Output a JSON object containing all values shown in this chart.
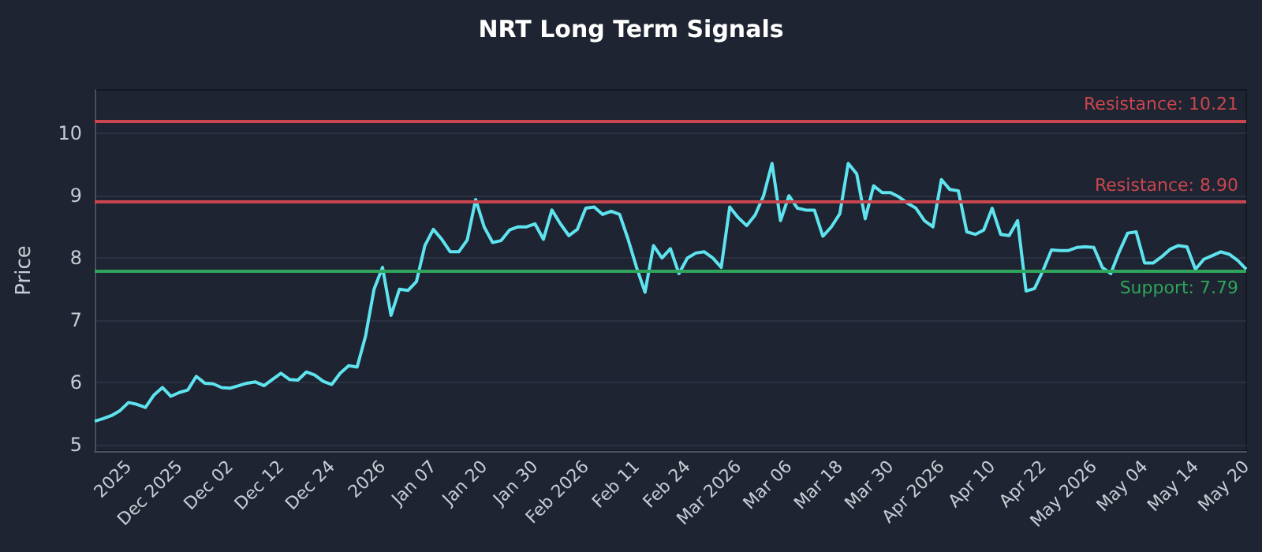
{
  "chart_data": {
    "type": "line",
    "title": "NRT Long Term Signals",
    "ylabel": "Price",
    "categories": [
      null,
      null,
      null,
      null,
      "2025",
      null,
      null,
      null,
      null,
      null,
      "Dec 2025",
      null,
      null,
      null,
      null,
      null,
      "Dec 02",
      null,
      null,
      null,
      null,
      null,
      "Dec 12",
      null,
      null,
      null,
      null,
      null,
      "Dec 24",
      null,
      null,
      null,
      null,
      null,
      "2026",
      null,
      null,
      null,
      null,
      null,
      "Jan 07",
      null,
      null,
      null,
      null,
      null,
      "Jan 20",
      null,
      null,
      null,
      null,
      null,
      "Jan 30",
      null,
      null,
      null,
      null,
      null,
      "Feb 2026",
      null,
      null,
      null,
      null,
      null,
      "Feb 11",
      null,
      null,
      null,
      null,
      null,
      "Feb 24",
      null,
      null,
      null,
      null,
      null,
      "Mar 2026",
      null,
      null,
      null,
      null,
      null,
      "Mar 06",
      null,
      null,
      null,
      null,
      null,
      "Mar 18",
      null,
      null,
      null,
      null,
      null,
      "Mar 30",
      null,
      null,
      null,
      null,
      null,
      "Apr 2026",
      null,
      null,
      null,
      null,
      null,
      "Apr 10",
      null,
      null,
      null,
      null,
      null,
      "Apr 22",
      null,
      null,
      null,
      null,
      null,
      "May 2026",
      null,
      null,
      null,
      null,
      null,
      "May 04",
      null,
      null,
      null,
      null,
      null,
      "May 14",
      null,
      null,
      null,
      null,
      null,
      "May 20"
    ],
    "series": [
      {
        "color": "#5ee3ef",
        "values": [
          5.38,
          5.42,
          5.47,
          5.55,
          5.68,
          5.65,
          5.6,
          5.8,
          5.92,
          5.78,
          5.84,
          5.88,
          6.1,
          5.99,
          5.98,
          5.92,
          5.91,
          5.95,
          5.99,
          6.01,
          5.95,
          6.05,
          6.15,
          6.05,
          6.04,
          6.17,
          6.12,
          6.02,
          5.97,
          6.15,
          6.27,
          6.25,
          6.75,
          7.5,
          7.85,
          7.08,
          7.5,
          7.48,
          7.62,
          8.2,
          8.46,
          8.3,
          8.1,
          8.1,
          8.29,
          8.94,
          8.5,
          8.25,
          8.28,
          8.45,
          8.5,
          8.5,
          8.55,
          8.3,
          8.77,
          8.55,
          8.36,
          8.46,
          8.8,
          8.82,
          8.7,
          8.75,
          8.7,
          8.3,
          7.85,
          7.45,
          8.2,
          8.0,
          8.15,
          7.75,
          8.0,
          8.08,
          8.1,
          8.0,
          7.85,
          8.82,
          8.65,
          8.52,
          8.69,
          9.0,
          9.52,
          8.6,
          9.0,
          8.8,
          8.77,
          8.77,
          8.35,
          8.5,
          8.71,
          9.52,
          9.35,
          8.63,
          9.16,
          9.05,
          9.05,
          8.98,
          8.88,
          8.8,
          8.6,
          8.5,
          9.26,
          9.1,
          9.08,
          8.42,
          8.38,
          8.45,
          8.8,
          8.38,
          8.36,
          8.6,
          7.47,
          7.51,
          7.8,
          8.13,
          8.12,
          8.12,
          8.17,
          8.18,
          8.17,
          7.85,
          7.75,
          8.1,
          8.4,
          8.42,
          7.92,
          7.92,
          8.02,
          8.14,
          8.2,
          8.18,
          7.82,
          7.98,
          8.04,
          8.1,
          8.06,
          7.96,
          7.82
        ]
      }
    ],
    "ylim": [
      4.9,
      10.7
    ],
    "yticks": [
      5,
      6,
      7,
      8,
      9,
      10
    ],
    "grid": "y",
    "marker": "none",
    "line_style": "solid",
    "ref_lines": [
      {
        "axis": "y",
        "value": 10.21,
        "label": "Resistance: 10.21",
        "color": "#c9464f"
      },
      {
        "axis": "y",
        "value": 8.9,
        "label": "Resistance: 8.90",
        "color": "#c9464f"
      },
      {
        "axis": "y",
        "value": 7.79,
        "label": "Support: 7.79",
        "color": "#2ea55a"
      }
    ]
  }
}
